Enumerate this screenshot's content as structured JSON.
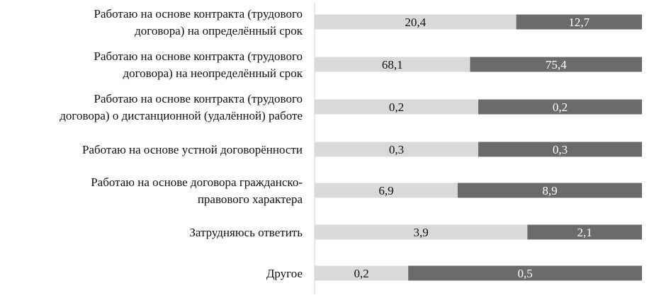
{
  "chart_data": {
    "type": "bar",
    "orientation": "horizontal",
    "stacked": true,
    "categories": [
      [
        "Работаю на основе контракта (трудового",
        "договора) на определённый срок"
      ],
      [
        "Работаю на основе контракта (трудового",
        "договора) на неопределённый срок"
      ],
      [
        "Работаю на основе контракта (трудового",
        "договора) о дистанционной (удалённой) работе"
      ],
      [
        "Работаю на основе устной договорённости"
      ],
      [
        "Работаю на основе договора гражданско-",
        "правового характера"
      ],
      [
        "Затрудняюсь ответить"
      ],
      [
        "Другое"
      ]
    ],
    "series": [
      {
        "color": "#d9d9d9",
        "values": [
          20.4,
          68.1,
          0.2,
          0.3,
          6.9,
          3.9,
          0.2
        ],
        "labels": [
          "20,4",
          "68,1",
          "0,2",
          "0,3",
          "6,9",
          "3,9",
          "0,2"
        ]
      },
      {
        "color": "#6b6b6b",
        "values": [
          12.7,
          75.4,
          0.2,
          0.3,
          8.9,
          2.1,
          0.5
        ],
        "labels": [
          "12,7",
          "75,4",
          "0,2",
          "0,3",
          "8,9",
          "2,1",
          "0,5"
        ]
      }
    ],
    "segment_shares": [
      [
        0.616,
        0.384
      ],
      [
        0.475,
        0.525
      ],
      [
        0.5,
        0.5
      ],
      [
        0.5,
        0.5
      ],
      [
        0.437,
        0.563
      ],
      [
        0.65,
        0.35
      ],
      [
        0.286,
        0.714
      ]
    ],
    "normalized": true,
    "title": "",
    "xlabel": "",
    "ylabel": "",
    "grid": false,
    "legend": "none"
  }
}
